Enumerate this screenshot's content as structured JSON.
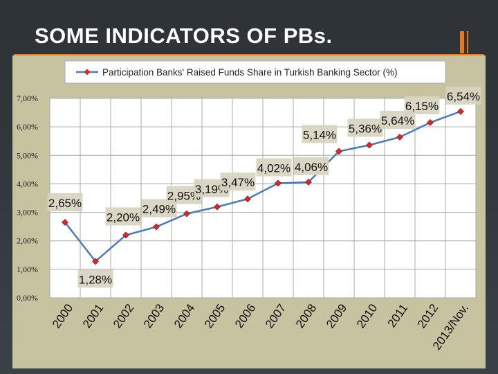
{
  "slide": {
    "title": "SOME INDICATORS OF PBs."
  },
  "colors": {
    "line": "#4a7ab8",
    "marker": "#d42a2a",
    "label_box": "#d8d4c0",
    "accent": "#e8771e"
  },
  "chart_data": {
    "type": "line",
    "legend_placement": "top",
    "grid": true,
    "categories": [
      "2000",
      "2001",
      "2002",
      "2003",
      "2004",
      "2005",
      "2006",
      "2007",
      "2008",
      "2009",
      "2010",
      "2011",
      "2012",
      "2013/Nov."
    ],
    "series": [
      {
        "name": "Participation Banks' Raised Funds Share in Turkish Banking Sector (%)",
        "values": [
          2.65,
          1.28,
          2.2,
          2.49,
          2.95,
          3.19,
          3.47,
          4.02,
          4.06,
          5.14,
          5.36,
          5.64,
          6.15,
          6.54
        ]
      }
    ],
    "data_labels": [
      "2,65%",
      "1,28%",
      "2,20%",
      "2,49%",
      "2,95%",
      "3,19%",
      "3,47%",
      "4,02%",
      "4,06%",
      "5,14%",
      "5,36%",
      "5,64%",
      "6,15%",
      "6,54%"
    ],
    "ylim": [
      0,
      7
    ],
    "yticks": [
      0,
      1,
      2,
      3,
      4,
      5,
      6,
      7
    ],
    "ytick_labels": [
      "0,00%",
      "1,00%",
      "2,00%",
      "3,00%",
      "4,00%",
      "5,00%",
      "6,00%",
      "7,00%"
    ],
    "xlabel": "",
    "ylabel": ""
  }
}
